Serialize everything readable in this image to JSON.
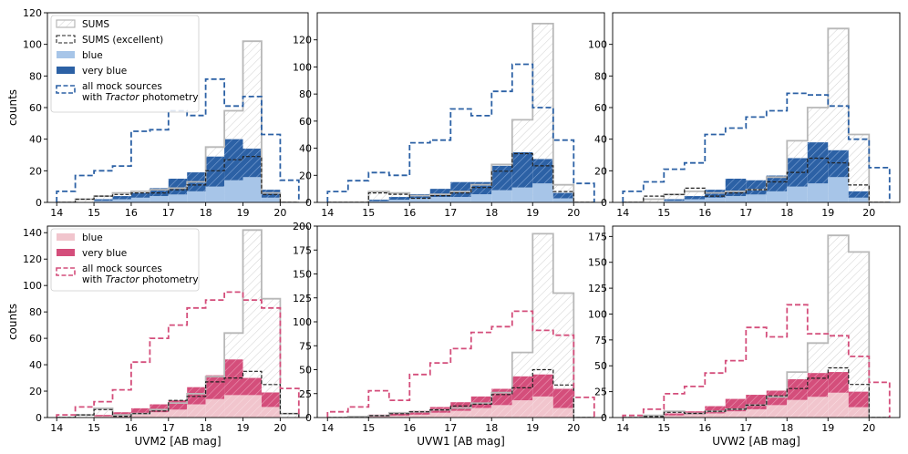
{
  "figure": {
    "colors": {
      "sums_edge": "#b8b8b8",
      "excellent_edge": "#222222",
      "blue_light": "#a7c5e8",
      "blue_dark": "#2c61a5",
      "pink_light": "#f1c5cd",
      "pink_dark": "#d44e7b",
      "blue_mock": "#2c61a5",
      "pink_mock": "#d44e7b"
    },
    "legends": {
      "top": [
        "SUMS",
        "SUMS (excellent)",
        "blue",
        "very blue",
        [
          "all mock sources",
          "with ",
          "Tractor",
          " photometry"
        ]
      ],
      "bottom": [
        "blue",
        "very blue",
        [
          "all mock sources",
          "with ",
          "Tractor",
          " photometry"
        ]
      ]
    }
  },
  "chart_data": [
    {
      "type": "bar",
      "row": "top",
      "filter": "UVM2",
      "xlabel": "",
      "ylabel": "counts",
      "xlim": [
        13.75,
        20.75
      ],
      "ylim": [
        0,
        120
      ],
      "xticks": [
        14,
        15,
        16,
        17,
        18,
        19,
        20
      ],
      "yticks": [
        0,
        20,
        40,
        60,
        80,
        100,
        120
      ],
      "bin_edges": [
        14,
        14.5,
        15,
        15.5,
        16,
        16.5,
        17,
        17.5,
        18,
        18.5,
        19,
        19.5,
        20,
        20.5
      ],
      "series": [
        {
          "name": "SUMS",
          "values": [
            0,
            2,
            4,
            6,
            7,
            8,
            9,
            13,
            35,
            58,
            102,
            6,
            0
          ]
        },
        {
          "name": "SUMS (excellent)",
          "values": [
            0,
            2,
            4,
            5,
            6,
            6,
            8,
            11,
            20,
            27,
            29,
            5,
            0
          ]
        },
        {
          "name": "blue",
          "values": [
            0,
            0,
            1,
            2,
            3,
            4,
            5,
            7,
            10,
            14,
            16,
            3,
            0
          ]
        },
        {
          "name": "very blue",
          "values": [
            0,
            0,
            1,
            2,
            3,
            5,
            10,
            12,
            19,
            26,
            18,
            5,
            0
          ]
        },
        {
          "name": "all mock sources with Tractor photometry",
          "values": [
            7,
            17,
            20,
            23,
            45,
            46,
            58,
            55,
            78,
            61,
            67,
            43,
            14
          ]
        }
      ]
    },
    {
      "type": "bar",
      "row": "top",
      "filter": "UVW1",
      "xlabel": "",
      "ylabel": "",
      "xlim": [
        13.75,
        20.75
      ],
      "ylim": [
        0,
        140
      ],
      "xticks": [
        14,
        15,
        16,
        17,
        18,
        19,
        20
      ],
      "yticks": [
        0,
        20,
        40,
        60,
        80,
        100,
        120
      ],
      "bin_edges": [
        14,
        14.5,
        15,
        15.5,
        16,
        16.5,
        17,
        17.5,
        18,
        18.5,
        19,
        19.5,
        20,
        20.5
      ],
      "series": [
        {
          "name": "SUMS",
          "values": [
            0,
            0,
            8,
            7,
            5,
            6,
            8,
            13,
            28,
            61,
            132,
            13,
            0
          ]
        },
        {
          "name": "SUMS (excellent)",
          "values": [
            0,
            0,
            7,
            6,
            3,
            5,
            7,
            11,
            23,
            36,
            27,
            8,
            0
          ]
        },
        {
          "name": "blue",
          "values": [
            0,
            0,
            1,
            2,
            3,
            4,
            4,
            6,
            9,
            11,
            14,
            3,
            0
          ]
        },
        {
          "name": "very blue",
          "values": [
            0,
            0,
            1,
            2,
            3,
            6,
            11,
            9,
            18,
            26,
            18,
            4,
            0
          ]
        },
        {
          "name": "all mock sources with Tractor photometry",
          "values": [
            8,
            16,
            22,
            20,
            44,
            46,
            69,
            64,
            82,
            102,
            70,
            46,
            14
          ]
        }
      ]
    },
    {
      "type": "bar",
      "row": "top",
      "filter": "UVW2",
      "xlabel": "",
      "ylabel": "",
      "xlim": [
        13.75,
        20.75
      ],
      "ylim": [
        0,
        120
      ],
      "xticks": [
        14,
        15,
        16,
        17,
        18,
        19,
        20
      ],
      "yticks": [
        0,
        20,
        40,
        60,
        80,
        100
      ],
      "bin_edges": [
        14,
        14.5,
        15,
        15.5,
        16,
        16.5,
        17,
        17.5,
        18,
        18.5,
        19,
        19.5,
        20,
        20.5
      ],
      "series": [
        {
          "name": "SUMS",
          "values": [
            0,
            2,
            5,
            7,
            6,
            7,
            8,
            16,
            39,
            60,
            110,
            43,
            0
          ]
        },
        {
          "name": "SUMS (excellent)",
          "values": [
            0,
            4,
            5,
            9,
            4,
            6,
            8,
            13,
            19,
            28,
            25,
            11,
            0
          ]
        },
        {
          "name": "blue",
          "values": [
            0,
            0,
            1,
            2,
            3,
            4,
            5,
            7,
            10,
            12,
            16,
            3,
            0
          ]
        },
        {
          "name": "very blue",
          "values": [
            0,
            0,
            1,
            2,
            5,
            11,
            9,
            10,
            18,
            26,
            17,
            4,
            0
          ]
        },
        {
          "name": "all mock sources with Tractor photometry",
          "values": [
            7,
            13,
            21,
            25,
            43,
            47,
            54,
            58,
            69,
            68,
            61,
            40,
            22
          ]
        }
      ]
    },
    {
      "type": "bar",
      "row": "bottom",
      "filter": "UVM2",
      "xlabel": "UVM2 [AB mag]",
      "ylabel": "counts",
      "xlim": [
        13.75,
        20.75
      ],
      "ylim": [
        0,
        145
      ],
      "xticks": [
        14,
        15,
        16,
        17,
        18,
        19,
        20
      ],
      "yticks": [
        0,
        20,
        40,
        60,
        80,
        100,
        120,
        140
      ],
      "bin_edges": [
        14,
        14.5,
        15,
        15.5,
        16,
        16.5,
        17,
        17.5,
        18,
        18.5,
        19,
        19.5,
        20,
        20.5
      ],
      "series": [
        {
          "name": "SUMS",
          "values": [
            0,
            2,
            7,
            2,
            3,
            6,
            11,
            18,
            31,
            64,
            142,
            90,
            3
          ]
        },
        {
          "name": "SUMS (excellent)",
          "values": [
            0,
            2,
            6,
            1,
            3,
            5,
            13,
            16,
            27,
            30,
            35,
            25,
            3
          ]
        },
        {
          "name": "blue",
          "values": [
            0,
            0,
            1,
            2,
            3,
            4,
            6,
            10,
            14,
            17,
            17,
            8,
            0
          ]
        },
        {
          "name": "very blue",
          "values": [
            0,
            0,
            1,
            2,
            4,
            6,
            7,
            13,
            18,
            27,
            13,
            11,
            0
          ]
        },
        {
          "name": "all mock sources with Tractor photometry",
          "values": [
            2,
            8,
            12,
            21,
            42,
            60,
            70,
            83,
            89,
            95,
            89,
            83,
            22
          ]
        }
      ]
    },
    {
      "type": "bar",
      "row": "bottom",
      "filter": "UVW1",
      "xlabel": "UVW1 [AB mag]",
      "ylabel": "",
      "xlim": [
        13.75,
        20.75
      ],
      "ylim": [
        0,
        200
      ],
      "xticks": [
        14,
        15,
        16,
        17,
        18,
        19,
        20
      ],
      "yticks": [
        0,
        25,
        50,
        75,
        100,
        125,
        150,
        175,
        200
      ],
      "bin_edges": [
        14,
        14.5,
        15,
        15.5,
        16,
        16.5,
        17,
        17.5,
        18,
        18.5,
        19,
        19.5,
        20,
        20.5
      ],
      "series": [
        {
          "name": "SUMS",
          "values": [
            0,
            1,
            2,
            5,
            6,
            8,
            10,
            15,
            26,
            68,
            192,
            130,
            0
          ]
        },
        {
          "name": "SUMS (excellent)",
          "values": [
            0,
            0,
            2,
            4,
            6,
            8,
            12,
            14,
            24,
            31,
            50,
            34,
            0
          ]
        },
        {
          "name": "blue",
          "values": [
            0,
            0,
            1,
            2,
            3,
            5,
            7,
            10,
            13,
            18,
            22,
            10,
            0
          ]
        },
        {
          "name": "very blue",
          "values": [
            0,
            0,
            2,
            3,
            4,
            6,
            9,
            12,
            17,
            25,
            23,
            20,
            0
          ]
        },
        {
          "name": "all mock sources with Tractor photometry",
          "values": [
            6,
            11,
            28,
            18,
            45,
            57,
            72,
            89,
            95,
            111,
            91,
            86,
            21
          ]
        }
      ]
    },
    {
      "type": "bar",
      "row": "bottom",
      "filter": "UVW2",
      "xlabel": "UVW2 [AB mag]",
      "ylabel": "",
      "xlim": [
        13.75,
        20.75
      ],
      "ylim": [
        0,
        185
      ],
      "xticks": [
        14,
        15,
        16,
        17,
        18,
        19,
        20
      ],
      "yticks": [
        0,
        25,
        50,
        75,
        100,
        125,
        150,
        175
      ],
      "bin_edges": [
        14,
        14.5,
        15,
        15.5,
        16,
        16.5,
        17,
        17.5,
        18,
        18.5,
        19,
        19.5,
        20,
        20.5
      ],
      "series": [
        {
          "name": "SUMS",
          "values": [
            0,
            2,
            6,
            4,
            6,
            8,
            12,
            20,
            44,
            72,
            176,
            160,
            0
          ]
        },
        {
          "name": "SUMS (excellent)",
          "values": [
            0,
            1,
            5,
            4,
            6,
            8,
            12,
            21,
            28,
            38,
            48,
            32,
            0
          ]
        },
        {
          "name": "blue",
          "values": [
            0,
            0,
            2,
            3,
            4,
            6,
            8,
            12,
            17,
            20,
            24,
            10,
            0
          ]
        },
        {
          "name": "very blue",
          "values": [
            0,
            0,
            2,
            3,
            7,
            12,
            14,
            14,
            20,
            23,
            20,
            15,
            0
          ]
        },
        {
          "name": "all mock sources with Tractor photometry",
          "values": [
            2,
            8,
            23,
            30,
            43,
            55,
            87,
            78,
            109,
            81,
            79,
            59,
            34
          ]
        }
      ]
    }
  ]
}
